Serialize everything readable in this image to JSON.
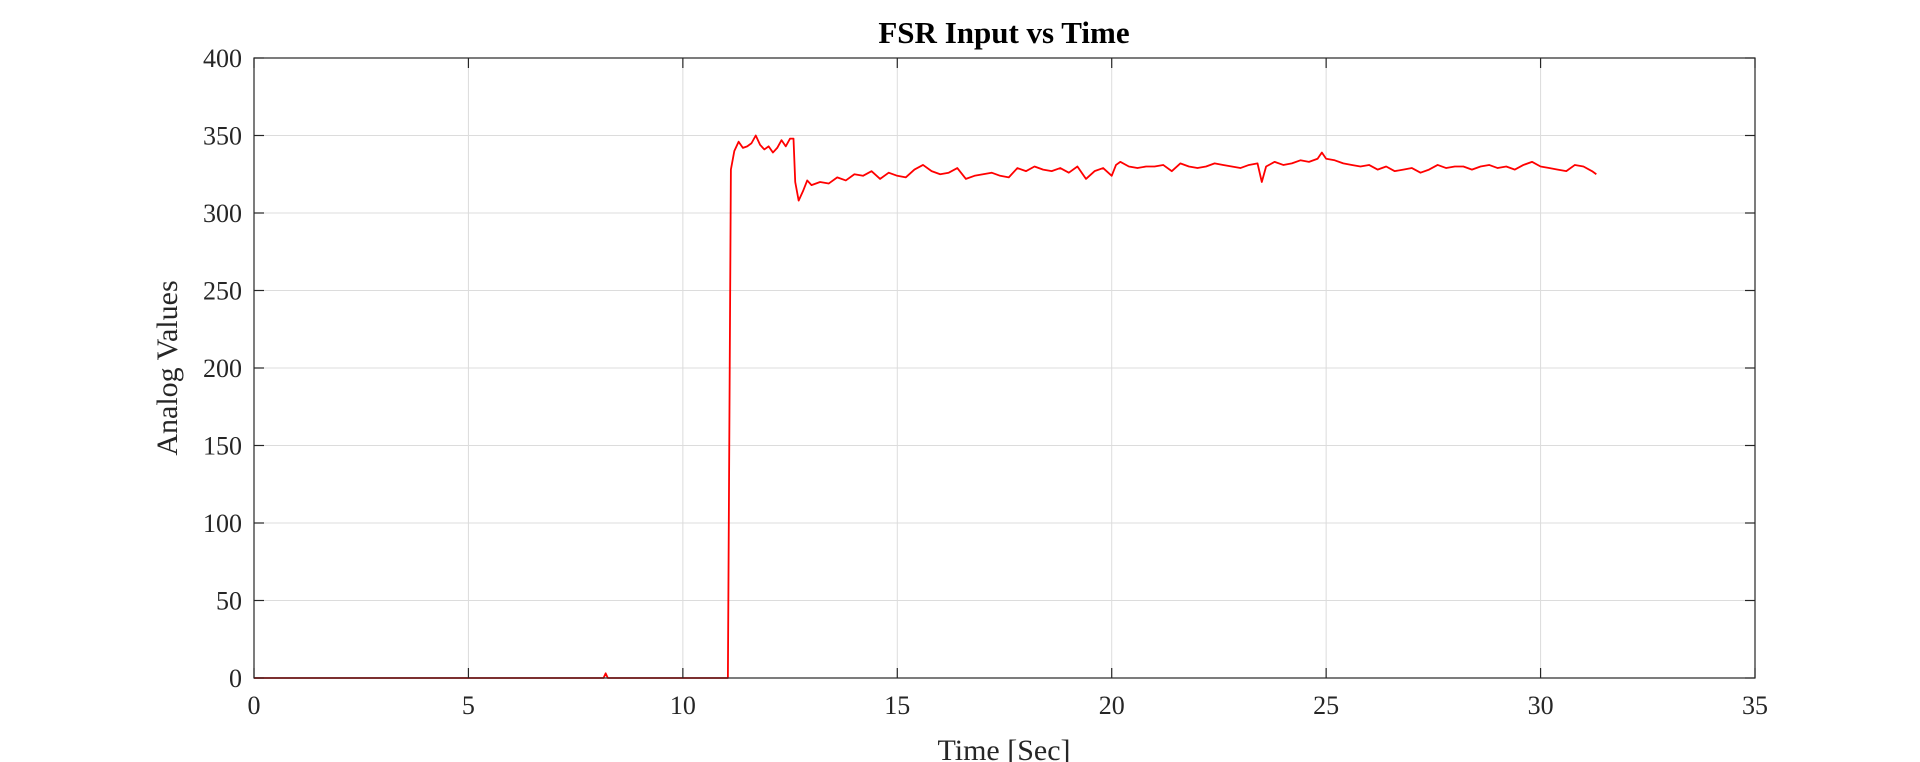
{
  "chart_data": {
    "type": "line",
    "title": "FSR Input vs Time",
    "xlabel": "Time [Sec]",
    "ylabel": "Analog Values",
    "xlim": [
      0,
      35
    ],
    "ylim": [
      0,
      400
    ],
    "xticks": [
      0,
      5,
      10,
      15,
      20,
      25,
      30,
      35
    ],
    "yticks": [
      0,
      50,
      100,
      150,
      200,
      250,
      300,
      350,
      400
    ],
    "grid": true,
    "legend": "none",
    "series": [
      {
        "color": "#ff0000",
        "x": [
          0,
          8.15,
          8.2,
          8.25,
          8.3,
          11.05,
          11.12,
          11.2,
          11.3,
          11.4,
          11.5,
          11.6,
          11.7,
          11.8,
          11.9,
          12.0,
          12.1,
          12.2,
          12.3,
          12.4,
          12.5,
          12.58,
          12.62,
          12.7,
          12.8,
          12.9,
          13.0,
          13.2,
          13.4,
          13.6,
          13.8,
          14.0,
          14.2,
          14.4,
          14.6,
          14.8,
          15.0,
          15.2,
          15.4,
          15.6,
          15.8,
          16.0,
          16.2,
          16.4,
          16.6,
          16.8,
          17.0,
          17.2,
          17.4,
          17.6,
          17.8,
          18.0,
          18.2,
          18.4,
          18.6,
          18.8,
          19.0,
          19.2,
          19.4,
          19.6,
          19.8,
          20.0,
          20.1,
          20.2,
          20.4,
          20.6,
          20.8,
          21.0,
          21.2,
          21.4,
          21.6,
          21.8,
          22.0,
          22.2,
          22.4,
          22.6,
          22.8,
          23.0,
          23.2,
          23.4,
          23.5,
          23.6,
          23.8,
          24.0,
          24.2,
          24.4,
          24.6,
          24.8,
          24.9,
          25.0,
          25.2,
          25.4,
          25.6,
          25.8,
          26.0,
          26.2,
          26.4,
          26.6,
          26.8,
          27.0,
          27.2,
          27.4,
          27.6,
          27.8,
          28.0,
          28.2,
          28.4,
          28.6,
          28.8,
          29.0,
          29.2,
          29.4,
          29.6,
          29.8,
          30.0,
          30.2,
          30.4,
          30.6,
          30.8,
          31.0,
          31.2,
          31.3
        ],
        "y": [
          0,
          0,
          3,
          0,
          0,
          0,
          328,
          340,
          346,
          342,
          343,
          345,
          350,
          344,
          341,
          343,
          339,
          342,
          347,
          343,
          348,
          348,
          320,
          308,
          314,
          321,
          318,
          320,
          319,
          323,
          321,
          325,
          324,
          327,
          322,
          326,
          324,
          323,
          328,
          331,
          327,
          325,
          326,
          329,
          322,
          324,
          325,
          326,
          324,
          323,
          329,
          327,
          330,
          328,
          327,
          329,
          326,
          330,
          322,
          327,
          329,
          324,
          331,
          333,
          330,
          329,
          330,
          330,
          331,
          327,
          332,
          330,
          329,
          330,
          332,
          331,
          330,
          329,
          331,
          332,
          320,
          330,
          333,
          331,
          332,
          334,
          333,
          335,
          339,
          335,
          334,
          332,
          331,
          330,
          331,
          328,
          330,
          327,
          328,
          329,
          326,
          328,
          331,
          329,
          330,
          330,
          328,
          330,
          331,
          329,
          330,
          328,
          331,
          333,
          330,
          329,
          328,
          327,
          331,
          330,
          327,
          325
        ]
      }
    ]
  }
}
